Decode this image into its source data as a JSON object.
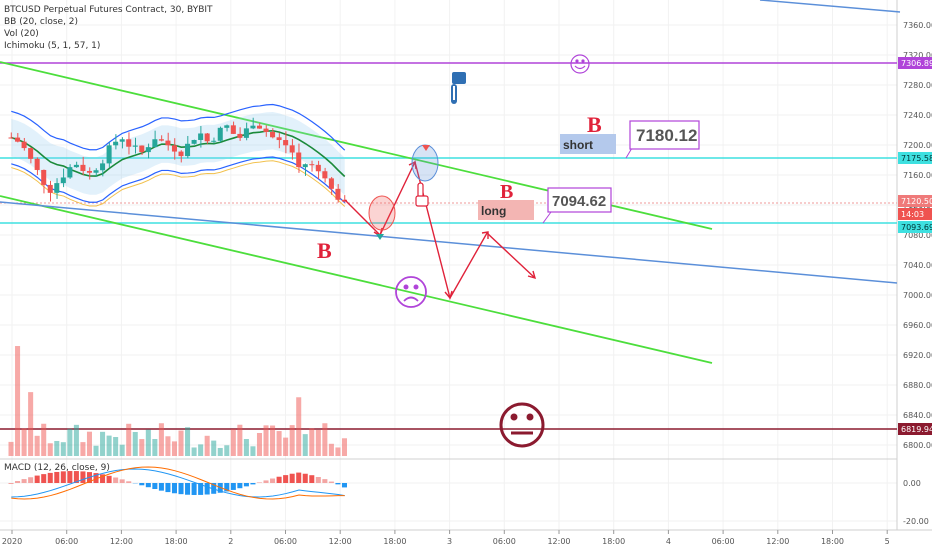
{
  "chart_data": {
    "type": "candlestick",
    "title": "BTCUSD Perpetual Futures Contract, 30, BYBIT",
    "indicators": [
      "BB (20, close, 2)",
      "Vol (20)",
      "Ichimoku (5, 1, 57, 1)"
    ],
    "macd_label": "MACD (12, 26, close, 9)",
    "y_axis_ticks": [
      "7360.00",
      "7320.00",
      "7280.00",
      "7240.00",
      "7200.00",
      "7160.00",
      "7120.00",
      "7080.00",
      "7040.00",
      "7000.00",
      "6960.00",
      "6920.00",
      "6880.00",
      "6840.00",
      "6800.00"
    ],
    "macd_ticks": [
      "0.00",
      "-20.00"
    ],
    "x_axis_ticks": [
      "2020",
      "06:00",
      "12:00",
      "18:00",
      "2",
      "06:00",
      "12:00",
      "18:00",
      "3",
      "06:00",
      "12:00",
      "18:00",
      "4",
      "06:00",
      "12:00",
      "18:00",
      "5"
    ],
    "price_tags": [
      {
        "value": "7306.89",
        "color": "#b044d9"
      },
      {
        "value": "7175.58",
        "color": "#3ee0e0"
      },
      {
        "value": "7120.50",
        "color": "#ef7a7a"
      },
      {
        "value": "14:03",
        "color": "#ef5350"
      },
      {
        "value": "7093.69",
        "color": "#3ee0e0"
      },
      {
        "value": "6819.94",
        "color": "#8b1a2f"
      }
    ],
    "annotations": {
      "short_label": "short",
      "long_label": "long",
      "short_price": "7180.12",
      "long_price": "7094.62",
      "b_markers": [
        "B",
        "B",
        "B"
      ]
    },
    "colors": {
      "up": "#26a69a",
      "down": "#ef5350",
      "channel": "#4cde3c",
      "trend_blue": "#5b8fd9",
      "purple": "#b044d9",
      "cyan": "#3ee0e0",
      "maroon": "#8b1a2f"
    }
  }
}
